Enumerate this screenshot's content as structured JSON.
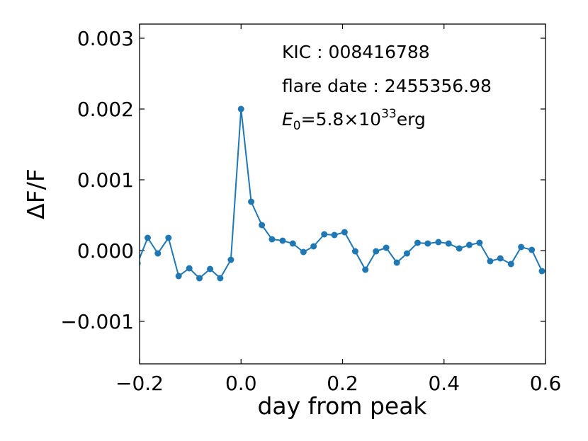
{
  "chart_data": {
    "type": "line",
    "xlabel": "day from peak",
    "ylabel": "ΔF/F",
    "xlim": [
      -0.2,
      0.6
    ],
    "ylim": [
      -0.0016,
      0.0032
    ],
    "xticks": [
      -0.2,
      0.0,
      0.2,
      0.4,
      0.6
    ],
    "xtick_labels": [
      "−0.2",
      "0.0",
      "0.2",
      "0.4",
      "0.6"
    ],
    "yticks": [
      -0.001,
      0.0,
      0.001,
      0.002,
      0.003
    ],
    "ytick_labels": [
      "−0.001",
      "0.000",
      "0.001",
      "0.002",
      "0.003"
    ],
    "grid": false,
    "line_color": "#1f77b4",
    "annotations": {
      "kic": "KIC : 008416788",
      "flare_date": "flare date : 2455356.98",
      "energy_symbol": "E",
      "energy_sub": "0",
      "energy_eq": "=5.8×10",
      "energy_exp": "33",
      "energy_unit": "erg"
    },
    "series": [
      {
        "x": [
          -0.204,
          -0.184,
          -0.164,
          -0.143,
          -0.123,
          -0.102,
          -0.082,
          -0.061,
          -0.041,
          -0.02,
          0.0,
          0.02,
          0.041,
          0.061,
          0.082,
          0.102,
          0.123,
          0.143,
          0.164,
          0.184,
          0.204,
          0.225,
          0.245,
          0.266,
          0.286,
          0.307,
          0.327,
          0.348,
          0.368,
          0.389,
          0.409,
          0.43,
          0.45,
          0.47,
          0.491,
          0.511,
          0.532,
          0.552,
          0.573,
          0.593
        ],
        "y": [
          -0.00018,
          0.00018,
          -4e-05,
          0.00018,
          -0.00036,
          -0.00025,
          -0.00039,
          -0.00026,
          -0.00039,
          -0.00013,
          0.002,
          0.00069,
          0.00036,
          0.00016,
          0.00014,
          0.0001,
          -2e-05,
          6e-05,
          0.00023,
          0.00022,
          0.00026,
          -1e-05,
          -0.00027,
          -1e-05,
          4e-05,
          -0.00017,
          -4e-05,
          0.00011,
          0.0001,
          0.00012,
          0.0001,
          3e-05,
          8e-05,
          0.00011,
          -0.00015,
          -0.00011,
          -0.00019,
          5e-05,
          1e-05,
          -0.00029
        ]
      }
    ]
  }
}
